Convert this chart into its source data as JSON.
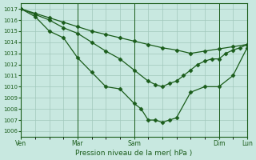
{
  "title": "Pression niveau de la mer( hPa )",
  "bg_color": "#c8e8e0",
  "grid_color": "#a0c8bc",
  "line_color": "#1a5c1a",
  "ylim": [
    1005.5,
    1017.5
  ],
  "yticks": [
    1006,
    1007,
    1008,
    1009,
    1010,
    1011,
    1012,
    1013,
    1014,
    1015,
    1016,
    1017
  ],
  "xlim": [
    0,
    96
  ],
  "xtick_positions": [
    0,
    24,
    48,
    60,
    84,
    96
  ],
  "xtick_labels": [
    "Ven",
    "Mar",
    "Sam",
    "",
    "Dim",
    "Lun"
  ],
  "vline_positions": [
    0,
    24,
    48,
    84,
    96
  ],
  "line1": {
    "x": [
      0,
      6,
      12,
      18,
      24,
      30,
      36,
      42,
      48,
      54,
      60,
      66,
      72,
      78,
      84,
      90,
      96
    ],
    "y": [
      1017,
      1016.6,
      1016.2,
      1015.8,
      1015.4,
      1015.0,
      1014.7,
      1014.4,
      1014.1,
      1013.8,
      1013.5,
      1013.3,
      1013.0,
      1013.2,
      1013.4,
      1013.6,
      1013.8
    ]
  },
  "line2": {
    "x": [
      0,
      6,
      12,
      18,
      24,
      30,
      36,
      42,
      48,
      54,
      57,
      60,
      63,
      66,
      69,
      72,
      75,
      78,
      81,
      84,
      87,
      90,
      93,
      96
    ],
    "y": [
      1017,
      1016.5,
      1016.0,
      1015.3,
      1014.8,
      1014.0,
      1013.2,
      1012.5,
      1011.5,
      1010.5,
      1010.2,
      1010.0,
      1010.3,
      1010.5,
      1011.0,
      1011.5,
      1012.0,
      1012.3,
      1012.5,
      1012.5,
      1013.0,
      1013.3,
      1013.5,
      1013.8
    ]
  },
  "line3": {
    "x": [
      0,
      6,
      12,
      18,
      24,
      30,
      36,
      42,
      48,
      51,
      54,
      57,
      60,
      63,
      66,
      72,
      78,
      84,
      90,
      96
    ],
    "y": [
      1017,
      1016.3,
      1015.0,
      1014.4,
      1012.6,
      1011.3,
      1010.0,
      1009.8,
      1008.5,
      1008.0,
      1007.0,
      1007.0,
      1006.8,
      1007.0,
      1007.2,
      1009.5,
      1010.0,
      1010.0,
      1011.0,
      1013.5
    ]
  },
  "marker": "D",
  "markersize": 2.5
}
